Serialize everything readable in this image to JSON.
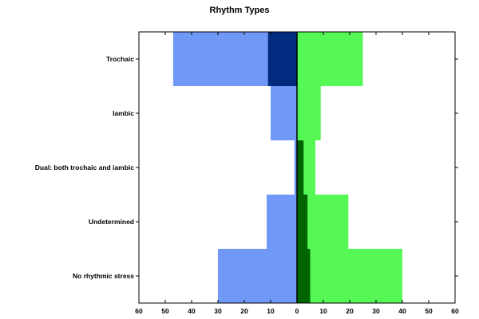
{
  "chart_data": {
    "type": "bar",
    "orientation": "horizontal-diverging",
    "title": "Rhythm Types",
    "xlabel": "",
    "ylabel": "",
    "xlim": [
      -60,
      60
    ],
    "x_ticks": [
      -60,
      -50,
      -40,
      -30,
      -20,
      -10,
      0,
      10,
      20,
      30,
      40,
      50,
      60
    ],
    "x_tick_labels": [
      "60",
      "50",
      "40",
      "30",
      "20",
      "10",
      "0",
      "10",
      "20",
      "30",
      "40",
      "50",
      "60"
    ],
    "categories": [
      "Trochaic",
      "Iambic",
      "Dual: both trochaic and iambic",
      "Undetermined",
      "No rhythmic stress"
    ],
    "grid": false,
    "legend": "none",
    "series": [
      {
        "side": "left",
        "layer": "outer",
        "color": "#7099f7",
        "values": [
          47,
          10,
          1,
          11.5,
          30
        ]
      },
      {
        "side": "left",
        "layer": "inner",
        "color": "#002b7f",
        "values": [
          11,
          0,
          0,
          0,
          0
        ]
      },
      {
        "side": "right",
        "layer": "outer",
        "color": "#55f855",
        "values": [
          25,
          9,
          7,
          19.5,
          40
        ]
      },
      {
        "side": "right",
        "layer": "inner",
        "color": "#006400",
        "values": [
          0,
          0,
          2.5,
          4,
          5
        ]
      }
    ]
  }
}
